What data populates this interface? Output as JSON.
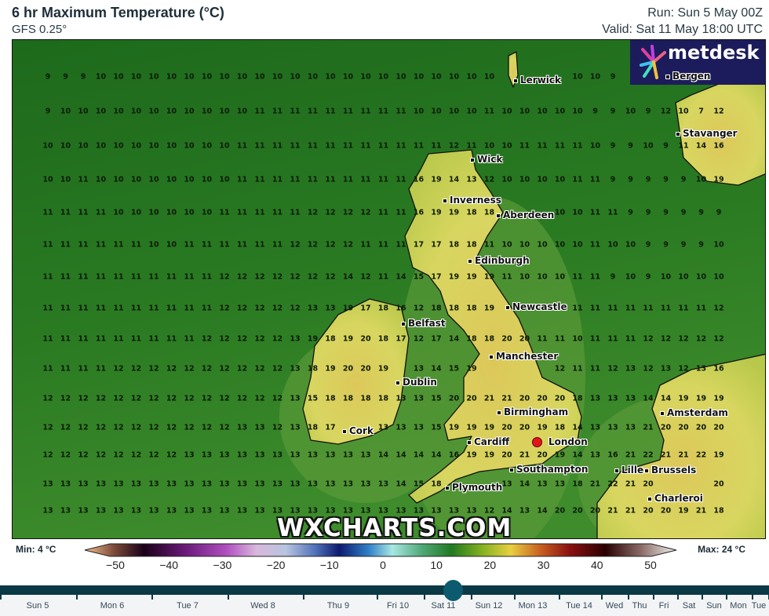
{
  "header": {
    "title": "6 hr Maximum Temperature (°C)",
    "model": "GFS 0.25°",
    "run": "Run: Sun 5 May 00Z",
    "valid": "Valid: Sat 11 May 18:00 UTC"
  },
  "logo": {
    "text": "metdesk",
    "icon": "metdesk-starburst-logo"
  },
  "watermark": "WXCHARTS.COM",
  "colors": {
    "sea_dark": "#1d6a1c",
    "sea_light": "#3e8c2c",
    "land": "#d6d45c",
    "timeline": "#0a3845",
    "knob": "#0c5a6d",
    "marker": "#e0161a"
  },
  "cities": [
    "Lerwick",
    "Bergen",
    "Stavanger",
    "Wick",
    "Inverness",
    "Aberdeen",
    "Edinburgh",
    "Newcastle",
    "Belfast",
    "Dublin",
    "Manchester",
    "Birmingham",
    "Cork",
    "Cardiff",
    "London",
    "Southampton",
    "Plymouth",
    "Amsterdam",
    "Lille",
    "Brussels",
    "Charleroi"
  ],
  "temperature_grid": [
    [
      9,
      9,
      9,
      10,
      10,
      10,
      10,
      10,
      10,
      10,
      10,
      10,
      10,
      10,
      10,
      10,
      10,
      10,
      10,
      10,
      10,
      10,
      10,
      10,
      10,
      10,
      null,
      null,
      null,
      null,
      10,
      10,
      9,
      null,
      null,
      null,
      null,
      null,
      null
    ],
    [
      9,
      10,
      10,
      10,
      10,
      10,
      10,
      10,
      10,
      10,
      10,
      10,
      11,
      11,
      11,
      11,
      11,
      11,
      11,
      11,
      11,
      10,
      10,
      10,
      10,
      11,
      10,
      10,
      10,
      10,
      10,
      9,
      9,
      10,
      9,
      12,
      10,
      7,
      12
    ],
    [
      10,
      10,
      10,
      10,
      10,
      10,
      10,
      10,
      10,
      10,
      10,
      11,
      11,
      11,
      11,
      11,
      11,
      11,
      11,
      11,
      11,
      11,
      11,
      12,
      11,
      10,
      10,
      11,
      11,
      11,
      11,
      10,
      9,
      9,
      10,
      9,
      11,
      14,
      16
    ],
    [
      10,
      10,
      11,
      10,
      10,
      10,
      10,
      10,
      10,
      10,
      10,
      11,
      11,
      11,
      11,
      11,
      11,
      11,
      11,
      11,
      11,
      16,
      19,
      14,
      13,
      12,
      10,
      10,
      10,
      10,
      11,
      11,
      9,
      9,
      9,
      9,
      9,
      10,
      19
    ],
    [
      11,
      11,
      11,
      11,
      10,
      10,
      10,
      10,
      10,
      10,
      11,
      11,
      11,
      11,
      11,
      12,
      12,
      12,
      12,
      11,
      11,
      16,
      19,
      19,
      18,
      18,
      null,
      null,
      null,
      10,
      10,
      11,
      11,
      9,
      9,
      9,
      9,
      9,
      9
    ],
    [
      11,
      11,
      11,
      11,
      11,
      11,
      10,
      10,
      11,
      11,
      11,
      11,
      11,
      11,
      12,
      12,
      12,
      12,
      11,
      11,
      11,
      17,
      17,
      18,
      18,
      11,
      10,
      10,
      10,
      10,
      10,
      11,
      10,
      10,
      9,
      9,
      9,
      9,
      10
    ],
    [
      11,
      11,
      11,
      11,
      11,
      11,
      11,
      11,
      11,
      11,
      12,
      12,
      12,
      12,
      12,
      12,
      12,
      14,
      12,
      11,
      14,
      15,
      17,
      19,
      19,
      19,
      11,
      10,
      10,
      10,
      11,
      11,
      9,
      10,
      9,
      10,
      10,
      10,
      10
    ],
    [
      11,
      11,
      11,
      11,
      11,
      11,
      11,
      11,
      11,
      11,
      12,
      12,
      12,
      12,
      12,
      13,
      13,
      19,
      17,
      18,
      16,
      12,
      18,
      18,
      18,
      19,
      null,
      null,
      null,
      null,
      11,
      11,
      11,
      11,
      11,
      11,
      11,
      11,
      12
    ],
    [
      11,
      11,
      11,
      11,
      11,
      11,
      11,
      11,
      11,
      12,
      12,
      12,
      12,
      12,
      13,
      19,
      18,
      19,
      20,
      18,
      17,
      12,
      17,
      14,
      18,
      18,
      20,
      20,
      11,
      11,
      10,
      11,
      11,
      11,
      12,
      12,
      12,
      12,
      12
    ],
    [
      11,
      11,
      11,
      11,
      12,
      12,
      12,
      12,
      12,
      12,
      12,
      12,
      12,
      12,
      13,
      18,
      19,
      20,
      20,
      19,
      null,
      13,
      14,
      15,
      19,
      null,
      null,
      null,
      null,
      12,
      11,
      11,
      12,
      13,
      12,
      13,
      12,
      13,
      16
    ],
    [
      12,
      12,
      12,
      12,
      12,
      12,
      12,
      12,
      12,
      12,
      12,
      12,
      12,
      12,
      13,
      15,
      18,
      18,
      18,
      18,
      13,
      13,
      15,
      20,
      20,
      21,
      21,
      20,
      20,
      20,
      18,
      13,
      13,
      13,
      14,
      14,
      19,
      19,
      19
    ],
    [
      12,
      12,
      12,
      12,
      12,
      12,
      12,
      12,
      12,
      12,
      12,
      13,
      13,
      12,
      13,
      18,
      17,
      null,
      null,
      13,
      13,
      13,
      15,
      19,
      19,
      19,
      20,
      20,
      19,
      18,
      14,
      13,
      13,
      13,
      21,
      20,
      20,
      20,
      20
    ],
    [
      12,
      12,
      12,
      12,
      12,
      12,
      12,
      12,
      13,
      13,
      13,
      13,
      13,
      13,
      13,
      13,
      13,
      13,
      13,
      14,
      14,
      14,
      14,
      16,
      19,
      19,
      20,
      21,
      20,
      19,
      14,
      13,
      16,
      21,
      22,
      21,
      21,
      22,
      19
    ],
    [
      13,
      13,
      13,
      13,
      13,
      13,
      13,
      13,
      13,
      13,
      13,
      13,
      13,
      13,
      13,
      13,
      13,
      13,
      13,
      13,
      14,
      15,
      18,
      null,
      null,
      null,
      13,
      14,
      13,
      13,
      18,
      21,
      22,
      21,
      20,
      null,
      null,
      null,
      20
    ],
    [
      13,
      13,
      13,
      13,
      13,
      13,
      13,
      13,
      13,
      13,
      13,
      13,
      13,
      13,
      13,
      13,
      13,
      13,
      13,
      13,
      13,
      13,
      13,
      13,
      13,
      12,
      14,
      13,
      14,
      20,
      20,
      20,
      21,
      21,
      20,
      20,
      19,
      21,
      18
    ]
  ],
  "colorbar": {
    "min_label": "Min: 4 °C",
    "max_label": "Max: 24 °C",
    "ticks": [
      "−50",
      "−40",
      "−30",
      "−20",
      "−10",
      "0",
      "10",
      "20",
      "30",
      "40",
      "50"
    ],
    "range": [
      -50,
      50
    ]
  },
  "timeline": {
    "selected": "Sat 11",
    "labels": [
      "Sun 5",
      "Mon 6",
      "Tue 7",
      "Wed 8",
      "Thu 9",
      "Fri 10",
      "Sat 11",
      "Sun 12",
      "Mon 13",
      "Tue 14",
      "Wed",
      "Thu",
      "Fri",
      "Sat",
      "Sun",
      "Mon",
      "Tue"
    ]
  }
}
